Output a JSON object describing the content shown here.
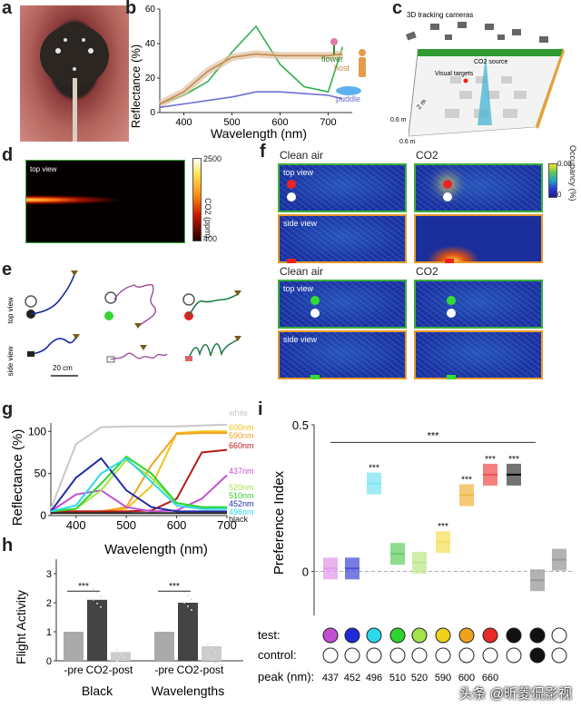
{
  "panels": {
    "a": "a",
    "b": "b",
    "c": "c",
    "d": "d",
    "e": "e",
    "f": "f",
    "g": "g",
    "h": "h",
    "i": "i"
  },
  "panel_b": {
    "ylabel": "Reflectance (%)",
    "xlabel": "Wavelength (nm)",
    "yticks": [
      "0",
      "20",
      "40",
      "60"
    ],
    "xticks": [
      "400",
      "500",
      "600",
      "700"
    ],
    "labels": {
      "flower": "flower",
      "host": "host",
      "puddle": "puddle"
    }
  },
  "panel_c": {
    "cameras": "3D tracking cameras",
    "source": "CO2 source",
    "targets": "Visual targets",
    "dims": [
      "0.6 m",
      "2 m",
      "0.6 m"
    ]
  },
  "panel_d": {
    "tag": "top view",
    "cbar_label": "CO2 (ppm)",
    "cbar_max": "2500",
    "cbar_min": "400"
  },
  "panel_e": {
    "top": "top view",
    "side": "side view",
    "scale": "20 cm"
  },
  "panel_f": {
    "clean": "Clean air",
    "co2": "CO2",
    "top": "top view",
    "side": "side view",
    "cbar_label": "Occupancy (%)",
    "cbar_max": "0.08",
    "cbar_min": "0"
  },
  "panel_g": {
    "ylabel": "Reflectance (%)",
    "xlabel": "Wavelength (nm)",
    "yticks": [
      "0",
      "50",
      "100"
    ],
    "xticks": [
      "400",
      "500",
      "600",
      "700"
    ],
    "legend": [
      "white",
      "600nm",
      "590nm",
      "660nm",
      "437nm",
      "520nm",
      "510nm",
      "452nm",
      "496nm",
      "black"
    ]
  },
  "panel_h": {
    "ylabel": "Flight Activity",
    "yticks": [
      "0",
      "1",
      "2",
      "3"
    ],
    "groups": [
      {
        "name": "Black",
        "labels": [
          "-pre",
          "CO2",
          "-post"
        ],
        "values": [
          1.0,
          2.1,
          0.3
        ]
      },
      {
        "name": "Wavelengths",
        "labels": [
          "-pre",
          "CO2",
          "-post"
        ],
        "values": [
          1.0,
          2.0,
          0.5
        ]
      }
    ],
    "sig": "***"
  },
  "chart_data": [
    {
      "type": "line",
      "title": "b",
      "xlabel": "Wavelength (nm)",
      "ylabel": "Reflectance (%)",
      "xlim": [
        350,
        750
      ],
      "ylim": [
        0,
        60
      ],
      "x": [
        350,
        400,
        450,
        500,
        550,
        600,
        650,
        700,
        730
      ],
      "series": [
        {
          "name": "flower",
          "values": [
            5,
            10,
            18,
            35,
            50,
            28,
            15,
            12,
            38
          ]
        },
        {
          "name": "host",
          "values": [
            5,
            12,
            24,
            32,
            34,
            33,
            33,
            33,
            34
          ]
        },
        {
          "name": "puddle",
          "values": [
            3,
            5,
            7,
            9,
            12,
            12,
            11,
            10,
            8
          ]
        }
      ]
    },
    {
      "type": "line",
      "title": "g",
      "xlabel": "Wavelength (nm)",
      "ylabel": "Reflectance (%)",
      "xlim": [
        350,
        700
      ],
      "ylim": [
        0,
        110
      ],
      "x": [
        350,
        400,
        450,
        500,
        550,
        600,
        650,
        700
      ],
      "series": [
        {
          "name": "white",
          "values": [
            8,
            85,
            105,
            106,
            106,
            106,
            107,
            108
          ]
        },
        {
          "name": "600nm",
          "values": [
            5,
            5,
            5,
            8,
            35,
            98,
            100,
            100
          ]
        },
        {
          "name": "590nm",
          "values": [
            5,
            5,
            5,
            10,
            60,
            97,
            98,
            98
          ]
        },
        {
          "name": "660nm",
          "values": [
            5,
            5,
            5,
            5,
            6,
            20,
            75,
            78
          ]
        },
        {
          "name": "437nm",
          "values": [
            5,
            25,
            30,
            10,
            5,
            6,
            20,
            48
          ]
        },
        {
          "name": "520nm",
          "values": [
            5,
            8,
            30,
            66,
            45,
            15,
            10,
            10
          ]
        },
        {
          "name": "510nm",
          "values": [
            5,
            8,
            38,
            70,
            50,
            15,
            10,
            10
          ]
        },
        {
          "name": "452nm",
          "values": [
            5,
            45,
            68,
            30,
            10,
            5,
            5,
            5
          ]
        },
        {
          "name": "496nm",
          "values": [
            5,
            12,
            50,
            68,
            40,
            12,
            8,
            8
          ]
        },
        {
          "name": "black",
          "values": [
            3,
            3,
            3,
            3,
            3,
            3,
            3,
            3
          ]
        }
      ]
    },
    {
      "type": "bar",
      "title": "h",
      "ylabel": "Flight Activity",
      "ylim": [
        0,
        3.5
      ],
      "categories": [
        "Black -pre",
        "Black CO2",
        "Black -post",
        "Wavelengths -pre",
        "Wavelengths CO2",
        "Wavelengths -post"
      ],
      "values": [
        1.0,
        2.1,
        0.3,
        1.0,
        2.0,
        0.5
      ]
    },
    {
      "type": "bar",
      "title": "i",
      "ylabel": "Preference Index",
      "ylim": [
        -0.15,
        0.5
      ],
      "yticks": [
        "0",
        "0.5"
      ],
      "top_sig": "***",
      "categories": [
        "437",
        "452",
        "496",
        "510",
        "520",
        "590",
        "600",
        "660",
        "black",
        "black-vs-black",
        "white"
      ],
      "test_colors": [
        "#c24fd1",
        "#1f2bd6",
        "#2bd9ea",
        "#2fd52f",
        "#a5e34a",
        "#f0d21e",
        "#f0a21e",
        "#ea2a2a",
        "#111111",
        "#111111",
        "#ffffff"
      ],
      "control_colors": [
        "#ffffff",
        "#ffffff",
        "#ffffff",
        "#ffffff",
        "#ffffff",
        "#ffffff",
        "#ffffff",
        "#ffffff",
        "#ffffff",
        "#111111",
        "#ffffff"
      ],
      "values": [
        0.01,
        0.01,
        0.3,
        0.06,
        0.03,
        0.1,
        0.26,
        0.33,
        0.33,
        -0.03,
        0.04
      ],
      "sig": [
        "",
        "",
        "***",
        "",
        "",
        "***",
        "***",
        "***",
        "***",
        "",
        ""
      ],
      "row_labels": {
        "test": "test:",
        "control": "control:",
        "peak": "peak (nm):"
      },
      "peak_labels": [
        "437",
        "452",
        "496",
        "510",
        "520",
        "590",
        "600",
        "660"
      ]
    }
  ],
  "watermark": "头条 @昕菱侃影视"
}
